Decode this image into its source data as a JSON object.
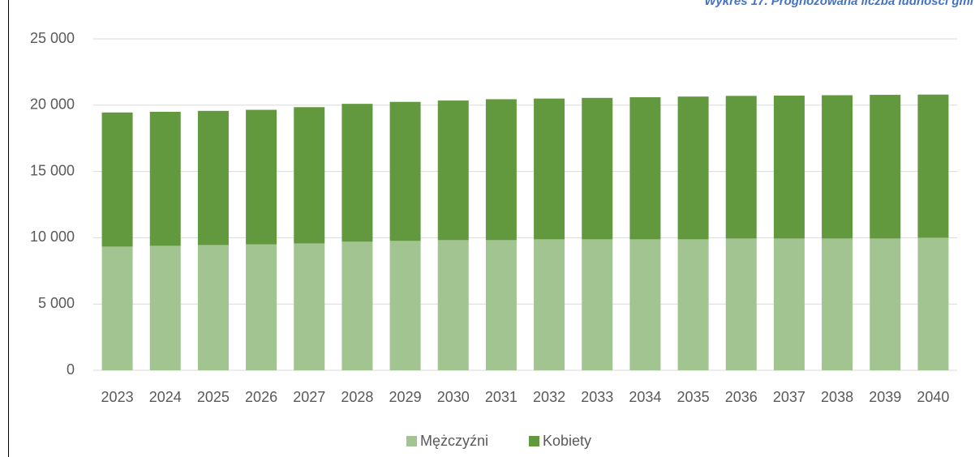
{
  "chart_data": {
    "type": "bar",
    "stacked": true,
    "title": "Wykres 17. Prognozowana liczba ludności gmi",
    "categories": [
      "2023",
      "2024",
      "2025",
      "2026",
      "2027",
      "2028",
      "2029",
      "2030",
      "2031",
      "2032",
      "2033",
      "2034",
      "2035",
      "2036",
      "2037",
      "2038",
      "2039",
      "2040"
    ],
    "series": [
      {
        "name": "Mężczyźni",
        "color": "#a1c490",
        "values": [
          9330,
          9390,
          9450,
          9500,
          9570,
          9700,
          9760,
          9820,
          9820,
          9880,
          9880,
          9880,
          9880,
          9940,
          9940,
          9940,
          9940,
          10000
        ]
      },
      {
        "name": "Kobiety",
        "color": "#62993e",
        "values": [
          10120,
          10110,
          10120,
          10150,
          10280,
          10400,
          10490,
          10530,
          10630,
          10620,
          10670,
          10720,
          10770,
          10760,
          10780,
          10810,
          10840,
          10800
        ]
      }
    ],
    "ylim": [
      0,
      25000
    ],
    "yticks": [
      0,
      {
        "value": 5000,
        "label": "5 000"
      },
      {
        "value": 10000,
        "label": "10 000"
      },
      {
        "value": 15000,
        "label": "15 000"
      },
      {
        "value": 20000,
        "label": "20 000"
      },
      {
        "value": 25000,
        "label": "25 000"
      }
    ],
    "grid": true,
    "legend": "bottom"
  }
}
